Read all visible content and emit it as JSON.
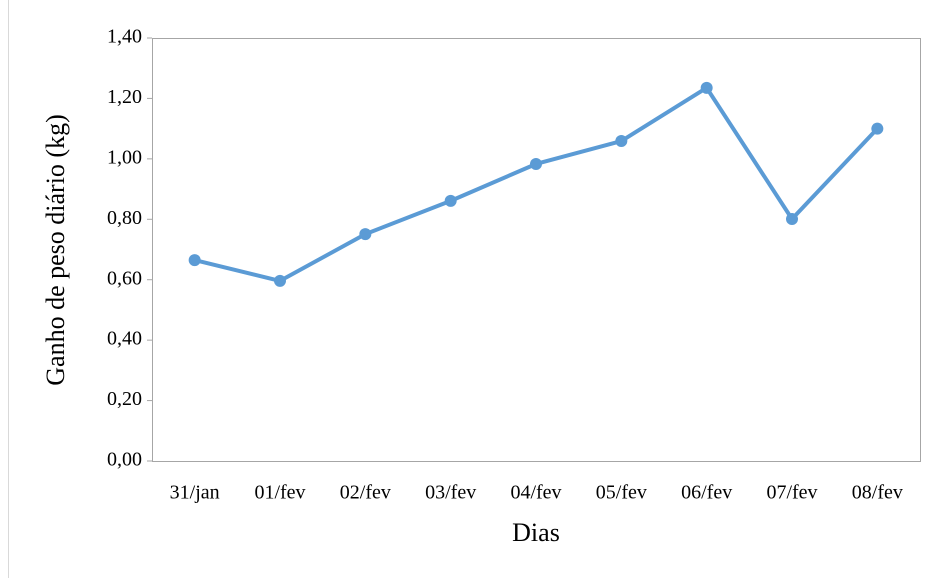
{
  "chart_data": {
    "type": "line",
    "x_label": "Dias",
    "y_label": "Ganho de peso diário (kg)",
    "categories": [
      "31/jan",
      "01/fev",
      "02/fev",
      "03/fev",
      "04/fev",
      "05/fev",
      "06/fev",
      "07/fev",
      "08/fev"
    ],
    "series": [
      {
        "color": "#5b9bd5",
        "values": [
          0.665,
          0.596,
          0.751,
          0.861,
          0.983,
          1.059,
          1.235,
          0.801,
          1.1
        ]
      }
    ],
    "ylim": [
      0,
      1.4
    ],
    "yticks": [
      {
        "value": 0,
        "label": "0,00"
      },
      {
        "value": 0.2,
        "label": "0,20"
      },
      {
        "value": 0.4,
        "label": "0,40"
      },
      {
        "value": 0.6,
        "label": "0,60"
      },
      {
        "value": 0.8,
        "label": "0,80"
      },
      {
        "value": 1.0,
        "label": "1,00"
      },
      {
        "value": 1.2,
        "label": "1,20"
      },
      {
        "value": 1.4,
        "label": "1,40"
      }
    ]
  }
}
